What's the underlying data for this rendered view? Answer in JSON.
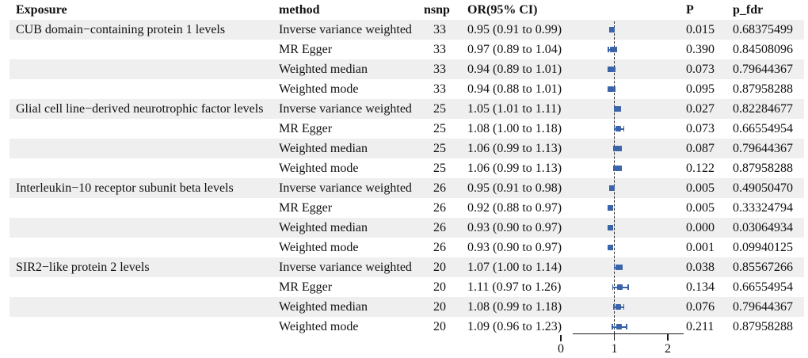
{
  "figure_header": {
    "exposure": "Exposure",
    "method": "method",
    "nsnp": "nsnp",
    "or_ci": "OR(95% CI)",
    "p": "P",
    "p_fdr": "p_fdr"
  },
  "chart_data": {
    "type": "forest",
    "columns": [
      "Exposure",
      "method",
      "nsnp",
      "OR(95% CI)",
      "P",
      "p_fdr"
    ],
    "x_axis": {
      "tick_labels": [
        "0",
        "1",
        "2"
      ],
      "tick_values": [
        0,
        1,
        2
      ],
      "ref_line": 1,
      "line_range": [
        0.22,
        2.3
      ]
    },
    "colors": {
      "marker": "#3a63a8",
      "stripe": "#efefef",
      "axis": "#1a1a1a"
    },
    "groups": [
      {
        "exposure": "CUB domain−containing protein 1 levels",
        "rows": [
          {
            "method": "Inverse variance weighted",
            "nsnp": "33",
            "or": 0.95,
            "ci_lo": 0.91,
            "ci_hi": 0.99,
            "or_ci": "0.95 (0.91 to 0.99)",
            "p": "0.015",
            "p_fdr": "0.68375499"
          },
          {
            "method": "MR Egger",
            "nsnp": "33",
            "or": 0.97,
            "ci_lo": 0.89,
            "ci_hi": 1.04,
            "or_ci": "0.97 (0.89 to 1.04)",
            "p": "0.390",
            "p_fdr": "0.84508096"
          },
          {
            "method": "Weighted median",
            "nsnp": "33",
            "or": 0.94,
            "ci_lo": 0.89,
            "ci_hi": 1.01,
            "or_ci": "0.94 (0.89 to 1.01)",
            "p": "0.073",
            "p_fdr": "0.79644367"
          },
          {
            "method": "Weighted mode",
            "nsnp": "33",
            "or": 0.94,
            "ci_lo": 0.88,
            "ci_hi": 1.01,
            "or_ci": "0.94 (0.88 to 1.01)",
            "p": "0.095",
            "p_fdr": "0.87958288"
          }
        ]
      },
      {
        "exposure": "Glial cell line−derived neurotrophic factor levels",
        "rows": [
          {
            "method": "Inverse variance weighted",
            "nsnp": "25",
            "or": 1.05,
            "ci_lo": 1.01,
            "ci_hi": 1.11,
            "or_ci": "1.05 (1.01 to 1.11)",
            "p": "0.027",
            "p_fdr": "0.82284677"
          },
          {
            "method": "MR Egger",
            "nsnp": "25",
            "or": 1.08,
            "ci_lo": 1.0,
            "ci_hi": 1.18,
            "or_ci": "1.08 (1.00 to 1.18)",
            "p": "0.073",
            "p_fdr": "0.66554954"
          },
          {
            "method": "Weighted median",
            "nsnp": "25",
            "or": 1.06,
            "ci_lo": 0.99,
            "ci_hi": 1.13,
            "or_ci": "1.06 (0.99 to 1.13)",
            "p": "0.087",
            "p_fdr": "0.79644367"
          },
          {
            "method": "Weighted mode",
            "nsnp": "25",
            "or": 1.06,
            "ci_lo": 0.99,
            "ci_hi": 1.13,
            "or_ci": "1.06 (0.99 to 1.13)",
            "p": "0.122",
            "p_fdr": "0.87958288"
          }
        ]
      },
      {
        "exposure": "Interleukin−10 receptor subunit beta levels",
        "rows": [
          {
            "method": "Inverse variance weighted",
            "nsnp": "26",
            "or": 0.95,
            "ci_lo": 0.91,
            "ci_hi": 0.98,
            "or_ci": "0.95 (0.91 to 0.98)",
            "p": "0.005",
            "p_fdr": "0.49050470"
          },
          {
            "method": "MR Egger",
            "nsnp": "26",
            "or": 0.92,
            "ci_lo": 0.88,
            "ci_hi": 0.97,
            "or_ci": "0.92 (0.88 to 0.97)",
            "p": "0.005",
            "p_fdr": "0.33324794"
          },
          {
            "method": "Weighted median",
            "nsnp": "26",
            "or": 0.93,
            "ci_lo": 0.9,
            "ci_hi": 0.97,
            "or_ci": "0.93 (0.90 to 0.97)",
            "p": "0.000",
            "p_fdr": "0.03064934"
          },
          {
            "method": "Weighted mode",
            "nsnp": "26",
            "or": 0.93,
            "ci_lo": 0.9,
            "ci_hi": 0.97,
            "or_ci": "0.93 (0.90 to 0.97)",
            "p": "0.001",
            "p_fdr": "0.09940125"
          }
        ]
      },
      {
        "exposure": "SIR2−like protein 2 levels",
        "rows": [
          {
            "method": "Inverse variance weighted",
            "nsnp": "20",
            "or": 1.07,
            "ci_lo": 1.0,
            "ci_hi": 1.14,
            "or_ci": "1.07 (1.00 to 1.14)",
            "p": "0.038",
            "p_fdr": "0.85567266"
          },
          {
            "method": "MR Egger",
            "nsnp": "20",
            "or": 1.11,
            "ci_lo": 0.97,
            "ci_hi": 1.26,
            "or_ci": "1.11 (0.97 to 1.26)",
            "p": "0.134",
            "p_fdr": "0.66554954"
          },
          {
            "method": "Weighted median",
            "nsnp": "20",
            "or": 1.08,
            "ci_lo": 0.99,
            "ci_hi": 1.18,
            "or_ci": "1.08 (0.99 to 1.18)",
            "p": "0.076",
            "p_fdr": "0.79644367"
          },
          {
            "method": "Weighted mode",
            "nsnp": "20",
            "or": 1.09,
            "ci_lo": 0.96,
            "ci_hi": 1.23,
            "or_ci": "1.09 (0.96 to 1.23)",
            "p": "0.211",
            "p_fdr": "0.87958288"
          }
        ]
      }
    ]
  }
}
